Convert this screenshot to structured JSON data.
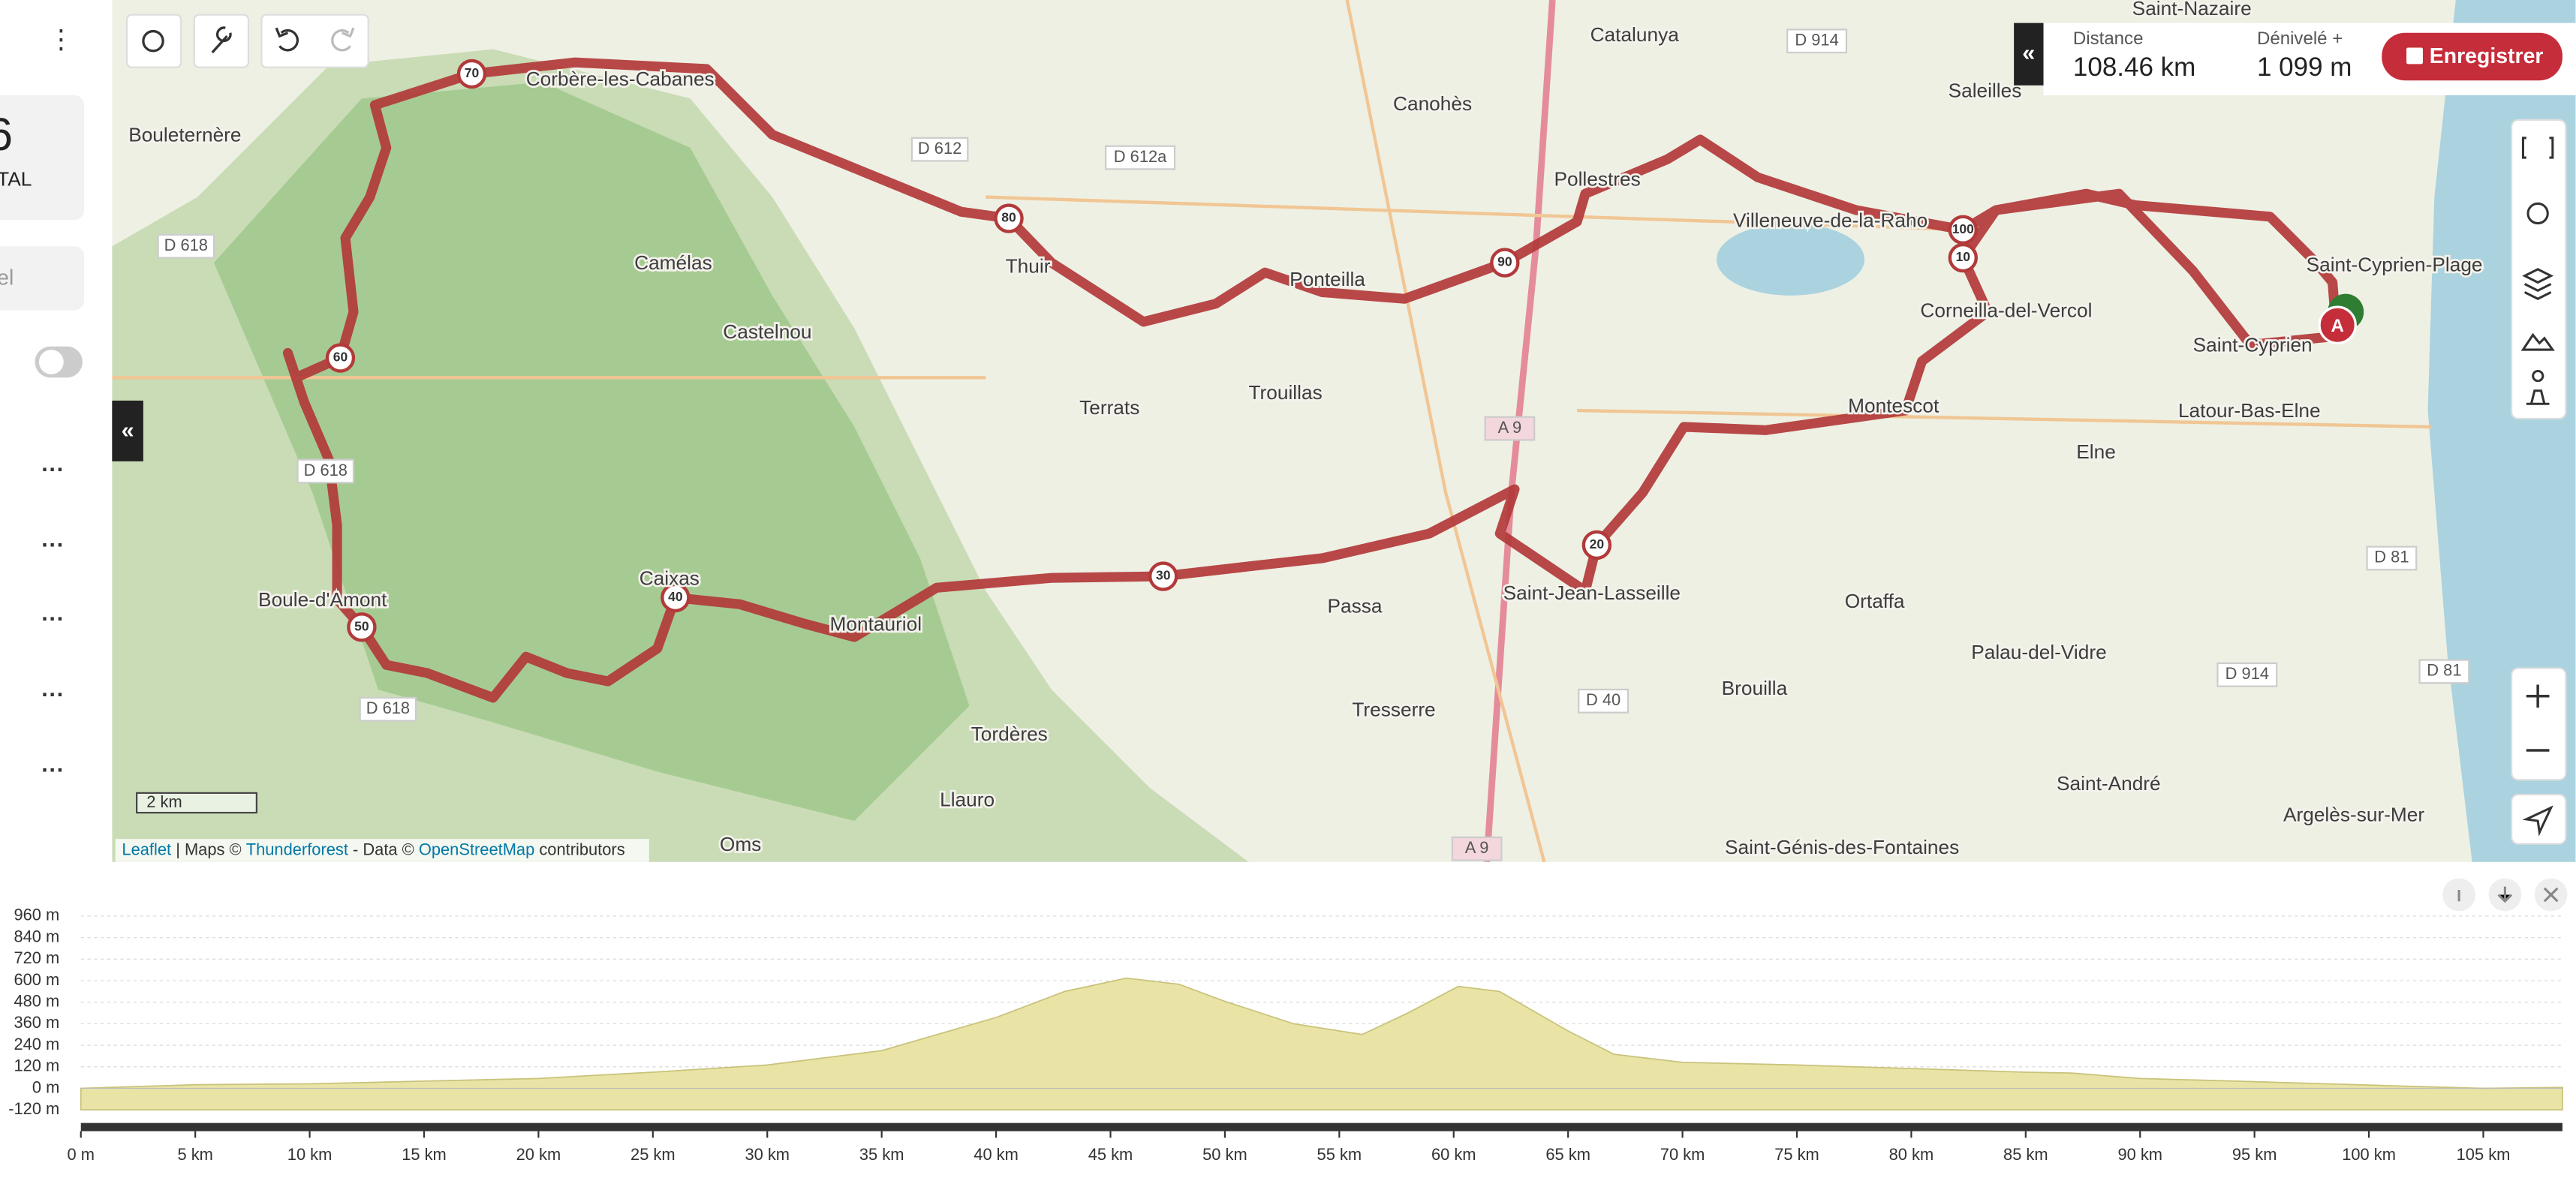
{
  "app": {
    "header_value": "6",
    "header_label": "TAL",
    "input_text": "el"
  },
  "stats": {
    "distance_label": "Distance",
    "distance": "108.46 km",
    "elevation_label": "Dénivelé +",
    "elevation": "1 099 m",
    "save_button": "Enregistrer"
  },
  "map": {
    "scale": "2 km",
    "start_marker": "A",
    "attribution": [
      "Leaflet",
      " | Maps © ",
      "Thunderforest",
      " - Data © ",
      "OpenStreetMap",
      " contributors"
    ],
    "places": [
      "Saint-Nazaire",
      "Catalunya",
      "Bouleternère",
      "Canohès",
      "Corbère-les-Cabanes",
      "Saleilles",
      "Camélas",
      "Pollestres",
      "Villeneuve-de-la-Raho",
      "Thuir",
      "Castelnou",
      "Ponteilla",
      "Corneilla-del-Vercol",
      "Saint-Cyprien-Plage",
      "Saint-Cyprien",
      "Terrats",
      "Trouillas",
      "Montescot",
      "Latour-Bas-Elne",
      "Elne",
      "Caixas",
      "Boule-d'Amont",
      "Passa",
      "Saint-Jean-Lasseille",
      "Ortaffa",
      "Montauriol",
      "Palau-del-Vidre",
      "Brouilla",
      "Tresserre",
      "Tordères",
      "Saint-André",
      "Llauro",
      "Argelès-sur-Mer",
      "Oms",
      "Saint-Génis-des-Fontaines"
    ],
    "roads": [
      "D 914",
      "D 612",
      "D 612a",
      "D 618",
      "A 9",
      "D 618",
      "D 81",
      "D 914",
      "D 81",
      "D 40",
      "D 618",
      "A 9"
    ],
    "km_markers": [
      "70",
      "80",
      "90",
      "100",
      "10",
      "60",
      "50",
      "40",
      "30",
      "20"
    ]
  },
  "chart_data": {
    "type": "area",
    "color": "#e9e4a6",
    "grid": true,
    "x": [
      0,
      5,
      10,
      15,
      20,
      25,
      30,
      35,
      40,
      43,
      45.7,
      48,
      50,
      53,
      56,
      58,
      60.2,
      62,
      65,
      67,
      70,
      75,
      80,
      85,
      87,
      90,
      95,
      100,
      105,
      108.46
    ],
    "values": [
      0,
      20,
      25,
      40,
      55,
      90,
      130,
      210,
      395,
      540,
      614,
      580,
      485,
      360,
      300,
      420,
      568,
      540,
      320,
      190,
      145,
      130,
      110,
      90,
      85,
      55,
      37,
      18,
      0,
      5
    ],
    "xlim": [
      0,
      108.46
    ],
    "ylim": [
      -120,
      960
    ],
    "xticks": [
      {
        "value": 0,
        "label": "0 m"
      },
      {
        "value": 5,
        "label": "5 km"
      },
      {
        "value": 10,
        "label": "10 km"
      },
      {
        "value": 15,
        "label": "15 km"
      },
      {
        "value": 20,
        "label": "20 km"
      },
      {
        "value": 25,
        "label": "25 km"
      },
      {
        "value": 30,
        "label": "30 km"
      },
      {
        "value": 35,
        "label": "35 km"
      },
      {
        "value": 40,
        "label": "40 km"
      },
      {
        "value": 45,
        "label": "45 km"
      },
      {
        "value": 50,
        "label": "50 km"
      },
      {
        "value": 55,
        "label": "55 km"
      },
      {
        "value": 60,
        "label": "60 km"
      },
      {
        "value": 65,
        "label": "65 km"
      },
      {
        "value": 70,
        "label": "70 km"
      },
      {
        "value": 75,
        "label": "75 km"
      },
      {
        "value": 80,
        "label": "80 km"
      },
      {
        "value": 85,
        "label": "85 km"
      },
      {
        "value": 90,
        "label": "90 km"
      },
      {
        "value": 95,
        "label": "95 km"
      },
      {
        "value": 100,
        "label": "100 km"
      },
      {
        "value": 105,
        "label": "105 km"
      }
    ],
    "yticks": [
      {
        "value": -120,
        "label": "-120 m"
      },
      {
        "value": 0,
        "label": "0 m"
      },
      {
        "value": 120,
        "label": "120 m"
      },
      {
        "value": 240,
        "label": "240 m"
      },
      {
        "value": 360,
        "label": "360 m"
      },
      {
        "value": 480,
        "label": "480 m"
      },
      {
        "value": 600,
        "label": "600 m"
      },
      {
        "value": 720,
        "label": "720 m"
      },
      {
        "value": 840,
        "label": "840 m"
      },
      {
        "value": 960,
        "label": "960 m"
      }
    ]
  }
}
